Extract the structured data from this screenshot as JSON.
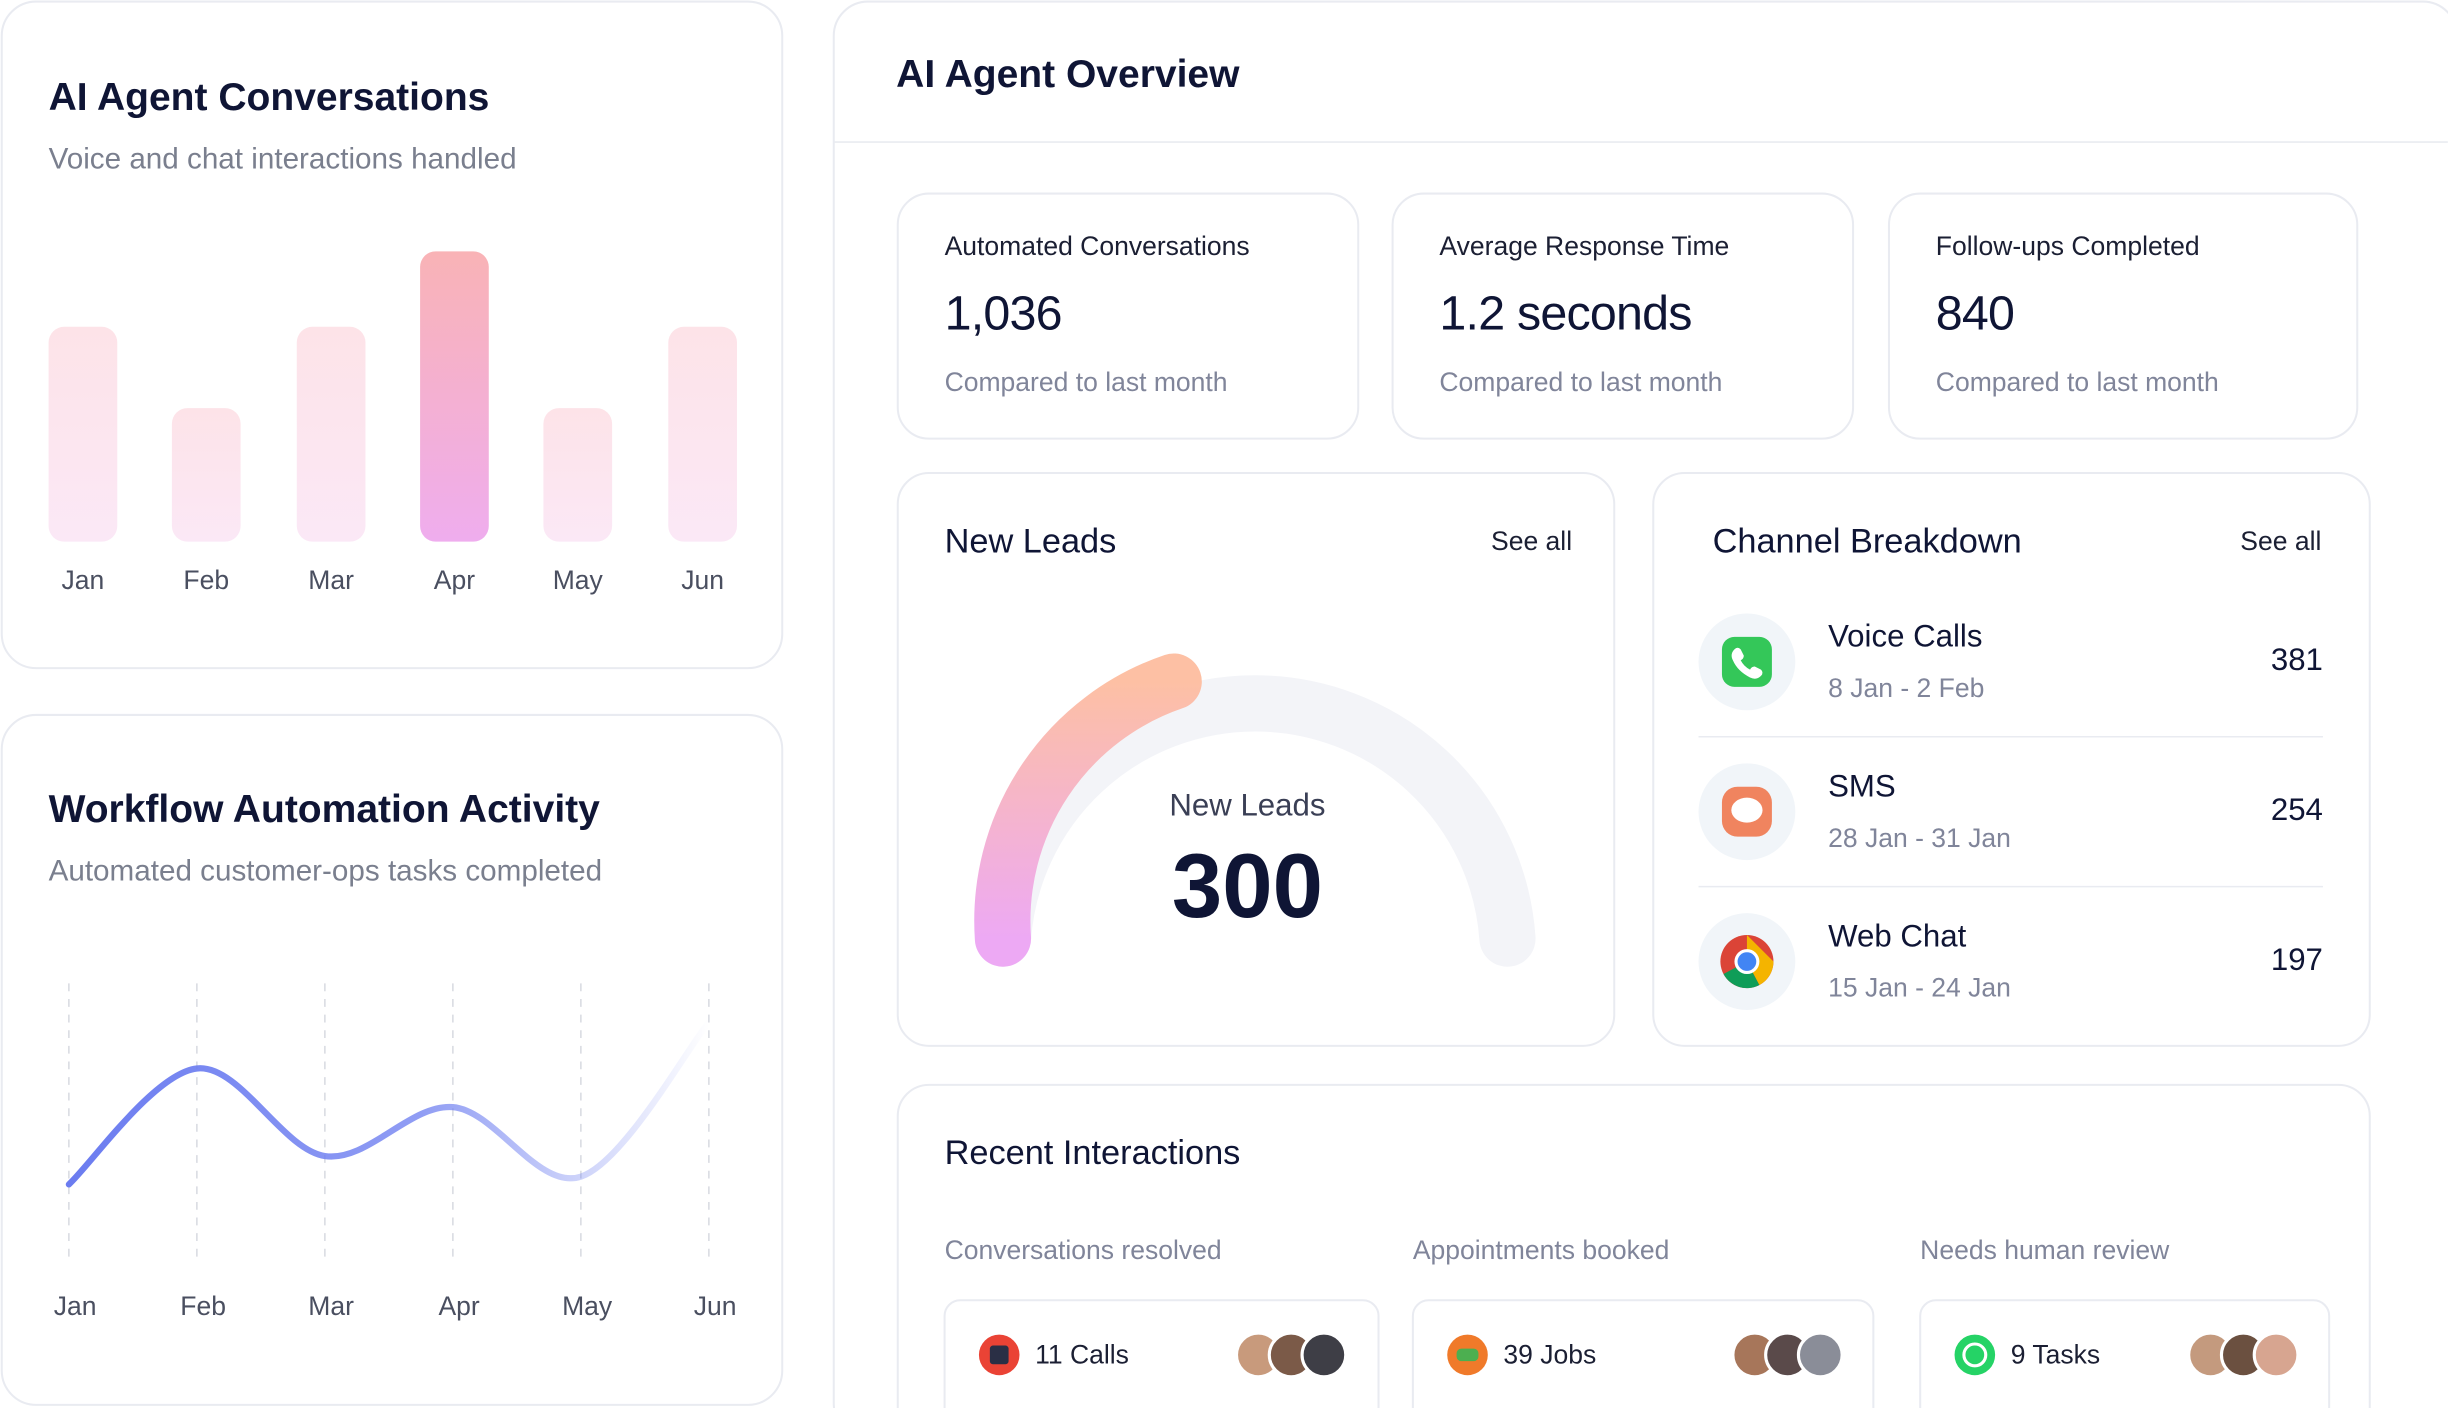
{
  "chart_data": [
    {
      "type": "bar",
      "title": "AI Agent Conversations",
      "subtitle": "Voice and chat interactions handled",
      "categories": [
        "Jan",
        "Feb",
        "Mar",
        "Apr",
        "May",
        "Jun"
      ],
      "values": [
        74,
        46,
        74,
        100,
        46,
        74
      ],
      "ylim": [
        0,
        100
      ],
      "colors": [
        [
          "#fde3e8",
          "#fbe8f6"
        ],
        [
          "#fde3e8",
          "#fbe8f6"
        ],
        [
          "#fde3e8",
          "#fbe8f6"
        ],
        [
          "#f9b3b6",
          "#efadee"
        ],
        [
          "#fde3e8",
          "#fbe8f6"
        ],
        [
          "#fde3e8",
          "#fbe8f6"
        ]
      ]
    },
    {
      "type": "line",
      "title": "Workflow Automation Activity",
      "subtitle": "Automated customer-ops tasks completed",
      "categories": [
        "Jan",
        "Feb",
        "Mar",
        "Apr",
        "May",
        "Jun"
      ],
      "values": [
        25,
        70,
        36,
        55,
        28,
        88
      ],
      "ylim": [
        0,
        100
      ],
      "color": "#6b7cf0",
      "grid": true
    },
    {
      "type": "gauge",
      "title": "New Leads",
      "link": "See all",
      "label": "New Leads",
      "value": 300,
      "ylim": [
        0,
        750
      ]
    }
  ],
  "overview": {
    "title": "AI Agent Overview",
    "stats": [
      {
        "label": "Automated Conversations",
        "value": "1,036",
        "note": "Compared to last month"
      },
      {
        "label": "Average Response Time",
        "value": "1.2 seconds",
        "note": "Compared to last month"
      },
      {
        "label": "Follow-ups Completed",
        "value": "840",
        "note": "Compared to last month"
      }
    ],
    "channels": {
      "title": "Channel Breakdown",
      "link": "See all",
      "items": [
        {
          "name": "Voice Calls",
          "dates": "8 Jan - 2 Feb",
          "value": 381
        },
        {
          "name": "SMS",
          "dates": "28 Jan - 31 Jan",
          "value": 254
        },
        {
          "name": "Web Chat",
          "dates": "15 Jan - 24 Jan",
          "value": 197
        }
      ]
    },
    "recent": {
      "title": "Recent Interactions",
      "columns": [
        {
          "label": "Conversations resolved",
          "count": "11 Calls"
        },
        {
          "label": "Appointments booked",
          "count": "39 Jobs"
        },
        {
          "label": "Needs human review",
          "count": "9 Tasks"
        }
      ]
    }
  }
}
